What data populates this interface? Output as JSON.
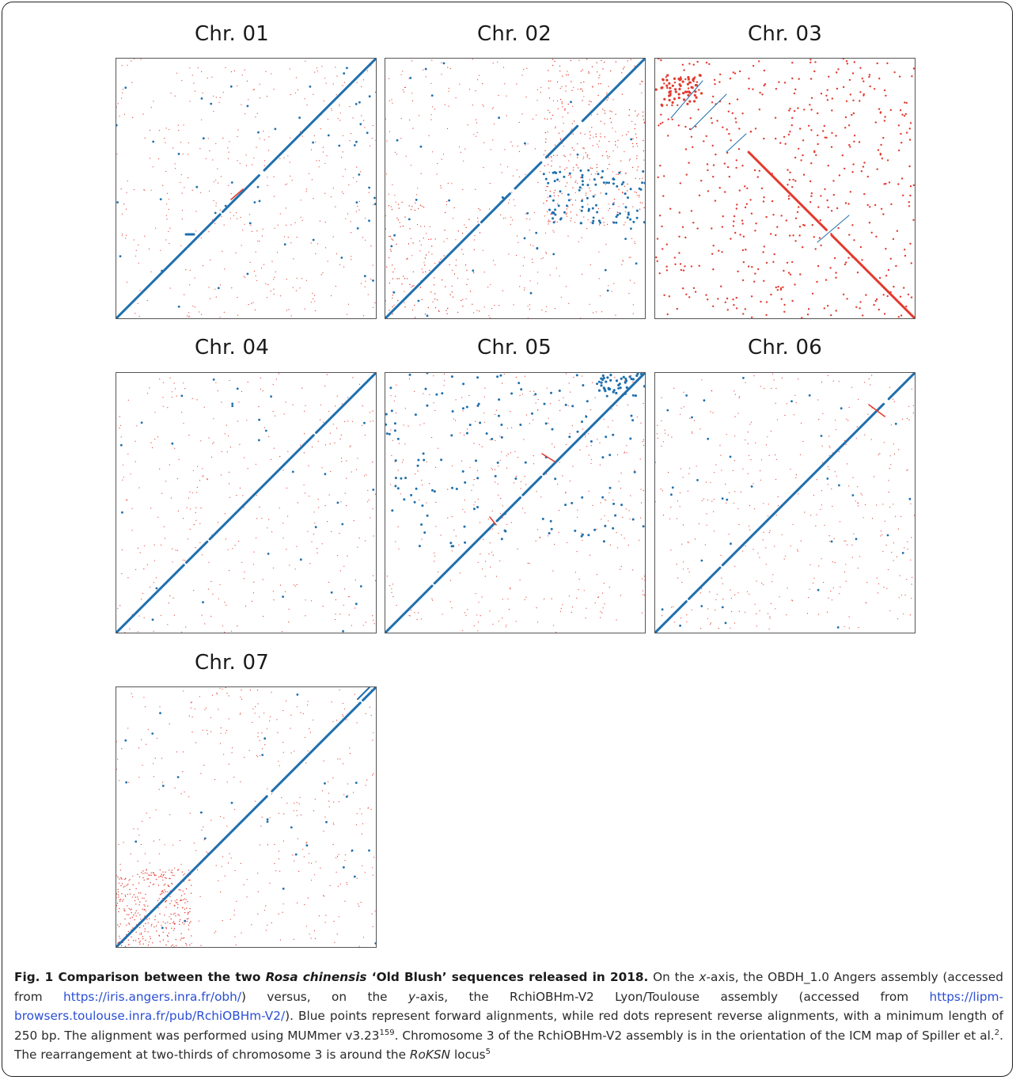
{
  "panels": [
    {
      "title": "Chr. 01",
      "colors": {
        "forward": "#1f6fad",
        "reverse": "#e33a2f"
      }
    },
    {
      "title": "Chr. 02"
    },
    {
      "title": "Chr. 03"
    },
    {
      "title": "Chr. 04"
    },
    {
      "title": "Chr. 05"
    },
    {
      "title": "Chr. 06"
    },
    {
      "title": "Chr. 07"
    }
  ],
  "caption": {
    "fig_label": "Fig. 1",
    "title_pre": "Comparison between the two ",
    "title_species": "Rosa chinensis",
    "title_post": " ‘Old Blush’ sequences released in 2018.",
    "t1": " On the ",
    "x_italic": "x",
    "t2": "-axis, the OBDH_1.0 Angers assembly (accessed from ",
    "link1": "https://iris.angers.inra.fr/obh/",
    "t3": ") versus, on the ",
    "y_italic": "y",
    "t4": "-axis, the RchiOBHm-V2 Lyon/Toulouse assembly (accessed from ",
    "link2": "https://lipm-browsers.toulouse.inra.fr/pub/RchiOBHm-V2/",
    "t5": "). Blue points represent forward alignments, while red dots represent reverse alignments, with a minimum length of 250 bp. The alignment was performed using MUMmer v3.23",
    "ref1": "159",
    "t6": ". Chromosome 3 of the RchiOBHm-V2 assembly is in the orientation of the ICM map of Spiller et al.",
    "ref2": "2",
    "t7": ". The rearrangement at two-thirds of chromosome 3 is around the ",
    "gene": "RoKSN",
    "t8": " locus",
    "ref3": "5"
  }
}
